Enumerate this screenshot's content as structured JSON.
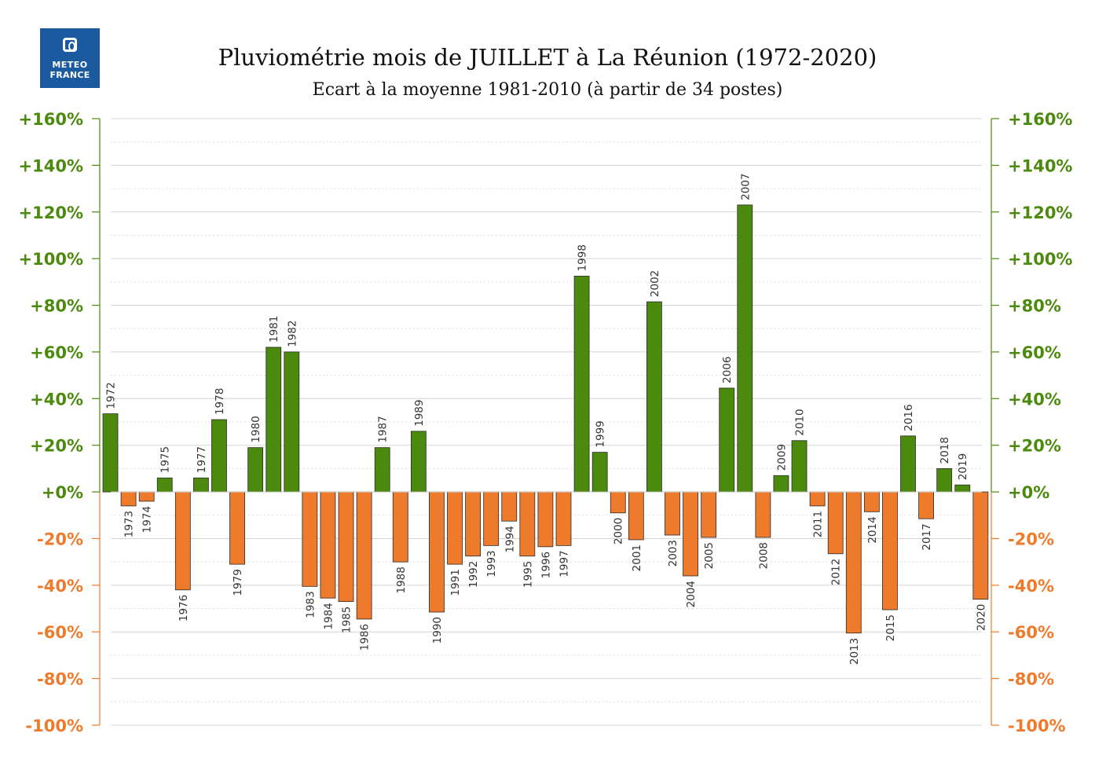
{
  "logo": {
    "line1": "METEO",
    "line2": "FRANCE"
  },
  "chart_data": {
    "type": "bar",
    "title": "Pluviométrie mois de JUILLET à La Réunion (1972-2020)",
    "subtitle": "Ecart à la moyenne 1981-2010 (à partir de 34 postes)",
    "ylim": [
      -100,
      160
    ],
    "y_ticks": [
      "+160%",
      "+140%",
      "+120%",
      "+100%",
      "+80%",
      "+60%",
      "+40%",
      "+20%",
      "+0%",
      "-20%",
      "-40%",
      "-60%",
      "-80%",
      "-100%"
    ],
    "y_tick_values": [
      160,
      140,
      120,
      100,
      80,
      60,
      40,
      20,
      0,
      -20,
      -40,
      -60,
      -80,
      -100
    ],
    "grid": true,
    "colors": {
      "positive": "#4b8a0c",
      "negative": "#ee7a2c",
      "positive_axis": "#4b8a0c",
      "negative_axis": "#ee7a2c"
    },
    "categories": [
      "1972",
      "1973",
      "1974",
      "1975",
      "1976",
      "1977",
      "1978",
      "1979",
      "1980",
      "1981",
      "1982",
      "1983",
      "1984",
      "1985",
      "1986",
      "1987",
      "1988",
      "1989",
      "1990",
      "1991",
      "1992",
      "1993",
      "1994",
      "1995",
      "1996",
      "1997",
      "1998",
      "1999",
      "2000",
      "2001",
      "2002",
      "2003",
      "2004",
      "2005",
      "2006",
      "2007",
      "2008",
      "2009",
      "2010",
      "2011",
      "2012",
      "2013",
      "2014",
      "2015",
      "2016",
      "2017",
      "2018",
      "2019",
      "2020"
    ],
    "values": [
      33.5,
      -6,
      -4,
      6,
      -42,
      6,
      31,
      -31,
      19,
      62,
      60,
      -40.5,
      -45.5,
      -47,
      -54.5,
      19,
      -30,
      26,
      -51.5,
      -31,
      -27.5,
      -23,
      -12.5,
      -27.5,
      -23.5,
      -23,
      92.5,
      17,
      -9,
      -20.5,
      81.5,
      -18.5,
      -36,
      -19.5,
      44.5,
      123,
      -19.5,
      7,
      22,
      -6,
      -26.5,
      -60.5,
      -8.5,
      -50.5,
      24,
      -11.5,
      10,
      3,
      -46
    ]
  }
}
